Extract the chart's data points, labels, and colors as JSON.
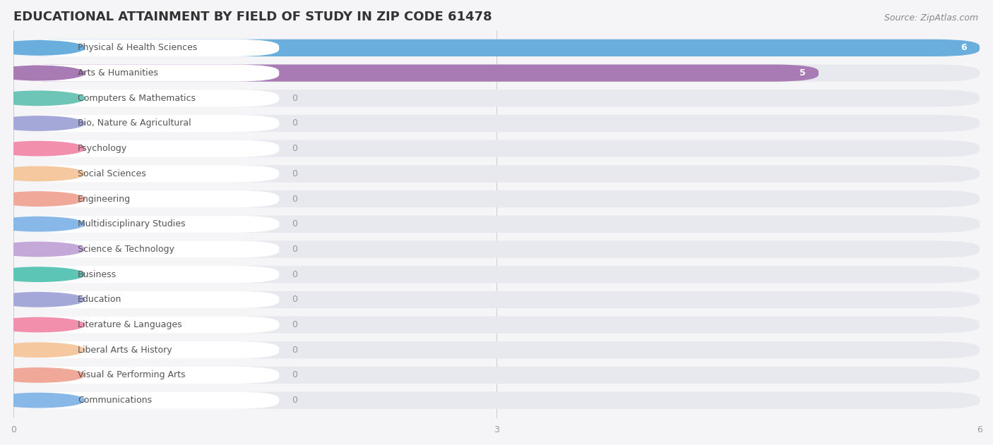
{
  "title": "EDUCATIONAL ATTAINMENT BY FIELD OF STUDY IN ZIP CODE 61478",
  "source": "Source: ZipAtlas.com",
  "categories": [
    "Physical & Health Sciences",
    "Arts & Humanities",
    "Computers & Mathematics",
    "Bio, Nature & Agricultural",
    "Psychology",
    "Social Sciences",
    "Engineering",
    "Multidisciplinary Studies",
    "Science & Technology",
    "Business",
    "Education",
    "Literature & Languages",
    "Liberal Arts & History",
    "Visual & Performing Arts",
    "Communications"
  ],
  "values": [
    6,
    5,
    0,
    0,
    0,
    0,
    0,
    0,
    0,
    0,
    0,
    0,
    0,
    0,
    0
  ],
  "bar_colors": [
    "#6AAEDE",
    "#A97BB5",
    "#6DC5B8",
    "#A4A8D8",
    "#F28FAD",
    "#F5C8A0",
    "#F0A899",
    "#88B8E8",
    "#C4A8D8",
    "#5DC5B5",
    "#A4A8D8",
    "#F28FAD",
    "#F5C8A0",
    "#F0A899",
    "#88B8E8"
  ],
  "xlim": [
    0,
    6
  ],
  "xticks": [
    0,
    3,
    6
  ],
  "background_color": "#f5f5f8",
  "bar_background_color": "#e8e8ef",
  "title_fontsize": 13,
  "label_fontsize": 9,
  "source_fontsize": 9
}
